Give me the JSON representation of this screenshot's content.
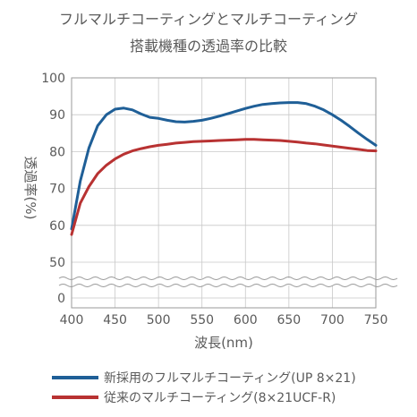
{
  "chart_data": {
    "type": "line",
    "title": "フルマルチコーティングとマルチコーティング",
    "subtitle": "搭載機種の透過率の比較",
    "xlabel": "波長(nm)",
    "ylabel": "透過率(%)",
    "xlim": [
      400,
      750
    ],
    "ylim": [
      0,
      100
    ],
    "axis_break": "between 0 and 50",
    "grid": true,
    "legend_position": "bottom",
    "x_ticks": [
      "400",
      "450",
      "500",
      "550",
      "600",
      "650",
      "700",
      "750"
    ],
    "y_ticks": [
      "100",
      "90",
      "80",
      "70",
      "60",
      "50",
      "0"
    ],
    "x": [
      400,
      410,
      420,
      430,
      440,
      450,
      460,
      470,
      480,
      490,
      500,
      510,
      520,
      530,
      540,
      550,
      560,
      570,
      580,
      590,
      600,
      610,
      620,
      630,
      640,
      650,
      660,
      670,
      680,
      690,
      700,
      710,
      720,
      730,
      740,
      750
    ],
    "series": [
      {
        "name": "新採用のフルマルチコーティング(UP 8×21)",
        "color": "#1f5f97",
        "values": [
          59,
          72,
          81,
          87,
          90,
          91.5,
          91.8,
          91.3,
          90.2,
          89.3,
          89.0,
          88.5,
          88.1,
          88.0,
          88.2,
          88.5,
          89.0,
          89.6,
          90.3,
          91.0,
          91.7,
          92.3,
          92.8,
          93.0,
          93.2,
          93.3,
          93.3,
          93.0,
          92.3,
          91.3,
          90.0,
          88.5,
          86.8,
          85.0,
          83.3,
          81.7
        ]
      },
      {
        "name": "従来のマルチコーティング(8×21UCF-R)",
        "color": "#b83232",
        "values": [
          57.5,
          66,
          70.5,
          74,
          76.3,
          78.0,
          79.3,
          80.2,
          80.8,
          81.3,
          81.7,
          82.0,
          82.3,
          82.5,
          82.7,
          82.8,
          82.9,
          83.0,
          83.1,
          83.2,
          83.3,
          83.3,
          83.2,
          83.1,
          83.0,
          82.8,
          82.6,
          82.3,
          82.1,
          81.8,
          81.5,
          81.2,
          80.9,
          80.6,
          80.3,
          80.2
        ]
      }
    ]
  }
}
